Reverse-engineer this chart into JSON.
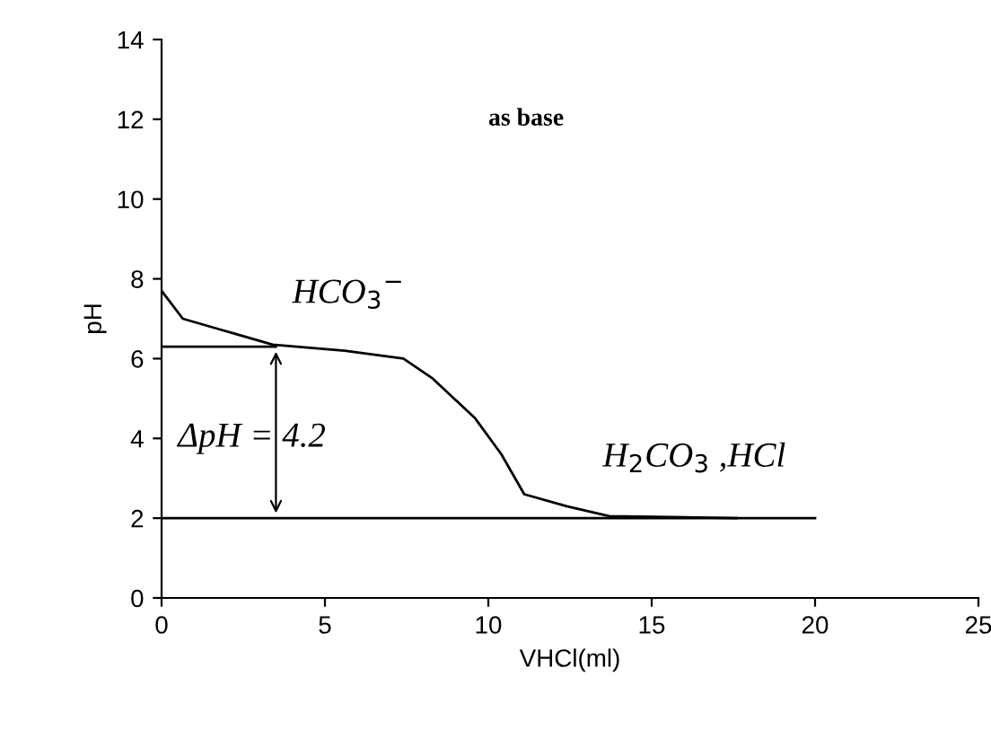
{
  "chart_data": {
    "type": "line",
    "xlabel": "VHCl(ml)",
    "ylabel": "pH",
    "xlim": [
      0,
      25
    ],
    "xticks": [
      0,
      5,
      10,
      15,
      20,
      25
    ],
    "ylim": [
      0,
      14
    ],
    "yticks": [
      0,
      2,
      4,
      6,
      8,
      10,
      12,
      14
    ],
    "grid": false,
    "legend": false,
    "marker": "none",
    "line_style": "solid",
    "series": [
      {
        "color": "#000000",
        "x": [
          0,
          0.65,
          3.4,
          5.6,
          7.4,
          8.3,
          9.6,
          10.4,
          11.1,
          12.4,
          13.7,
          17.6
        ],
        "values": [
          7.7,
          7.0,
          6.35,
          6.2,
          6.0,
          5.5,
          4.5,
          3.6,
          2.6,
          2.3,
          2.05,
          2.0
        ]
      },
      {
        "color": "#000000",
        "x": [
          0,
          3.5
        ],
        "values": [
          6.3,
          6.3
        ]
      },
      {
        "color": "#000000",
        "x": [
          0,
          20
        ],
        "values": [
          2.0,
          2.0
        ]
      }
    ],
    "annotations": [
      "as base",
      "HCO$_{3}$$^{−}$",
      "ΔpH = 4.2",
      "H$_{2}$CO$_{3}$ ,HCl"
    ]
  }
}
